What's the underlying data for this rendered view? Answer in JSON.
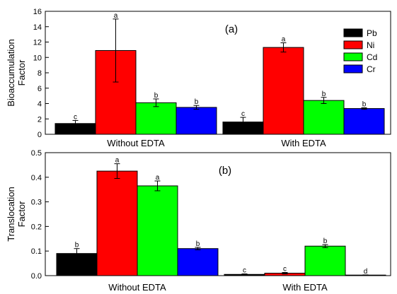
{
  "chart_data": [
    {
      "type": "bar",
      "panel_label": "(a)",
      "ylabel_lines": [
        "Bioaccumulation",
        "Factor"
      ],
      "ylim": [
        0,
        16
      ],
      "yticks": [
        0,
        2,
        4,
        6,
        8,
        10,
        12,
        14,
        16
      ],
      "categories": [
        "Without EDTA",
        "With EDTA"
      ],
      "legend": {
        "placement": "top-right"
      },
      "series": [
        {
          "name": "Pb",
          "color": "#000000",
          "values": [
            1.4,
            1.6
          ],
          "errors": [
            0.4,
            0.6
          ],
          "sig": [
            "c",
            "c"
          ]
        },
        {
          "name": "Ni",
          "color": "#ff0000",
          "values": [
            10.9,
            11.3
          ],
          "errors": [
            4.1,
            0.6
          ],
          "sig": [
            "a",
            "a"
          ]
        },
        {
          "name": "Cd",
          "color": "#00ff00",
          "values": [
            4.1,
            4.4
          ],
          "errors": [
            0.5,
            0.4
          ],
          "sig": [
            "b",
            "b"
          ]
        },
        {
          "name": "Cr",
          "color": "#0000ff",
          "values": [
            3.5,
            3.35
          ],
          "errors": [
            0.25,
            0.1
          ],
          "sig": [
            "b",
            "b"
          ]
        }
      ]
    },
    {
      "type": "bar",
      "panel_label": "(b)",
      "ylabel_lines": [
        "Translocation",
        "Factor"
      ],
      "ylim": [
        0,
        0.5
      ],
      "yticks": [
        "0.0",
        "0.1",
        "0.2",
        "0.3",
        "0.4",
        "0.5"
      ],
      "categories": [
        "Without EDTA",
        "With EDTA"
      ],
      "series": [
        {
          "name": "Pb",
          "color": "#000000",
          "values": [
            0.09,
            0.005
          ],
          "errors": [
            0.02,
            0.002
          ],
          "sig": [
            "b",
            "c"
          ]
        },
        {
          "name": "Ni",
          "color": "#ff0000",
          "values": [
            0.425,
            0.01
          ],
          "errors": [
            0.03,
            0.003
          ],
          "sig": [
            "a",
            "c"
          ]
        },
        {
          "name": "Cd",
          "color": "#00ff00",
          "values": [
            0.365,
            0.12
          ],
          "errors": [
            0.02,
            0.006
          ],
          "sig": [
            "a",
            "b"
          ]
        },
        {
          "name": "Cr",
          "color": "#0000ff",
          "values": [
            0.11,
            0.002
          ],
          "errors": [
            0.005,
            0.001
          ],
          "sig": [
            "b",
            "d"
          ]
        }
      ]
    }
  ]
}
